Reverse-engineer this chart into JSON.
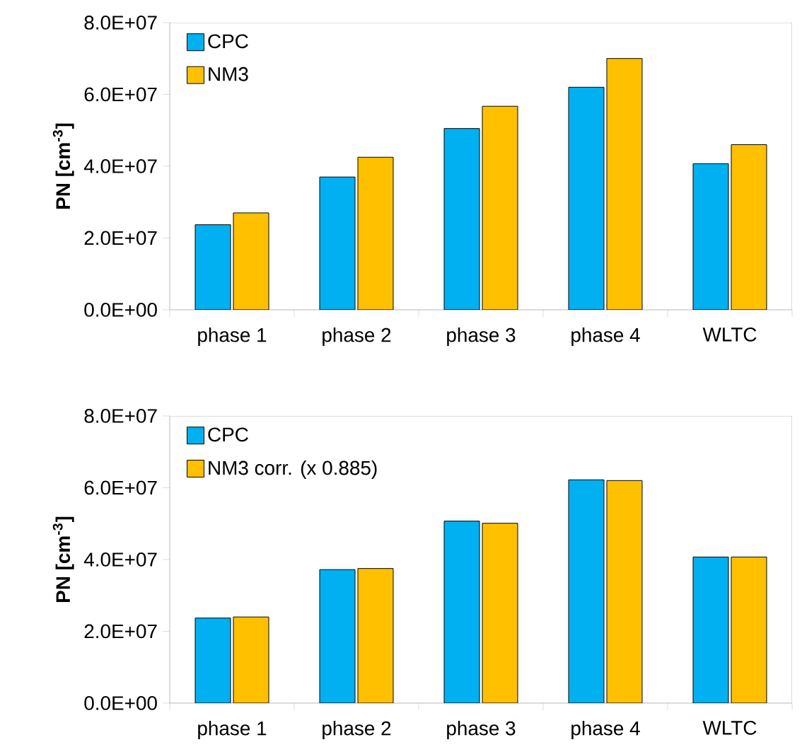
{
  "chart_data": [
    {
      "type": "bar",
      "ylabel": "PN [cm$^{-3}$]",
      "categories": [
        "phase 1",
        "phase 2",
        "phase 3",
        "phase 4",
        "WLTC"
      ],
      "series": [
        {
          "name": "CPC",
          "color": "#00b0f0",
          "values": [
            23700000,
            37000000,
            50500000,
            62000000,
            40700000
          ]
        },
        {
          "name": "NM3",
          "color": "#ffc000",
          "values": [
            27000000,
            42500000,
            56700000,
            70000000,
            46000000
          ]
        }
      ],
      "ylim": [
        0,
        80000000
      ],
      "yticks": [
        {
          "value": 0,
          "label": "0.0E+00"
        },
        {
          "value": 20000000,
          "label": "2.0E+07"
        },
        {
          "value": 40000000,
          "label": "4.0E+07"
        },
        {
          "value": 60000000,
          "label": "6.0E+07"
        },
        {
          "value": 80000000,
          "label": "8.0E+07"
        }
      ],
      "legend": "top left"
    },
    {
      "type": "bar",
      "ylabel": "PN [cm$^{-3}$]",
      "categories": [
        "phase 1",
        "phase 2",
        "phase 3",
        "phase 4",
        "WLTC"
      ],
      "series": [
        {
          "name": "CPC",
          "color": "#00b0f0",
          "values": [
            23700000,
            37200000,
            50700000,
            62200000,
            40700000
          ]
        },
        {
          "name": "NM3 corr. (x 0.885)",
          "color": "#ffc000",
          "values": [
            24000000,
            37500000,
            50100000,
            62000000,
            40700000
          ]
        }
      ],
      "ylim": [
        0,
        80000000
      ],
      "yticks": [
        {
          "value": 0,
          "label": "0.0E+00"
        },
        {
          "value": 20000000,
          "label": "2.0E+07"
        },
        {
          "value": 40000000,
          "label": "4.0E+07"
        },
        {
          "value": 60000000,
          "label": "6.0E+07"
        },
        {
          "value": 80000000,
          "label": "8.0E+07"
        }
      ],
      "legend": "top left"
    }
  ]
}
